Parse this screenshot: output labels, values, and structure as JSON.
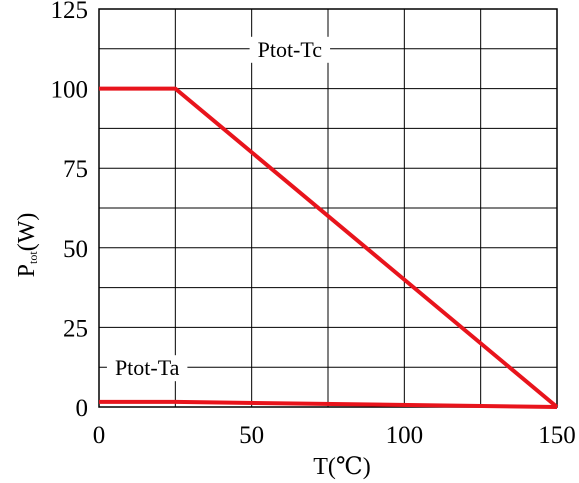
{
  "chart_data": {
    "type": "line",
    "title": "",
    "xlabel": "T(℃)",
    "ylabel": {
      "main": "P",
      "subscript": "tot",
      "unit": "(W)"
    },
    "xlim": [
      0,
      150
    ],
    "ylim": [
      0,
      125
    ],
    "xticks": [
      0,
      50,
      100,
      150
    ],
    "yticks": [
      0,
      25,
      50,
      75,
      100,
      125
    ],
    "xgrid": [
      0,
      25,
      50,
      75,
      100,
      125,
      150
    ],
    "ygrid": [
      0,
      12.5,
      25,
      37.5,
      50,
      62.5,
      75,
      87.5,
      100,
      112.5,
      125
    ],
    "grid": true,
    "line_color": "#e8141c",
    "series": [
      {
        "name": "Ptot-Tc",
        "x": [
          0,
          25,
          150
        ],
        "y": [
          100,
          100,
          0
        ]
      },
      {
        "name": "Ptot-Ta",
        "x": [
          0,
          25,
          150
        ],
        "y": [
          1.6,
          1.6,
          0
        ]
      }
    ]
  }
}
